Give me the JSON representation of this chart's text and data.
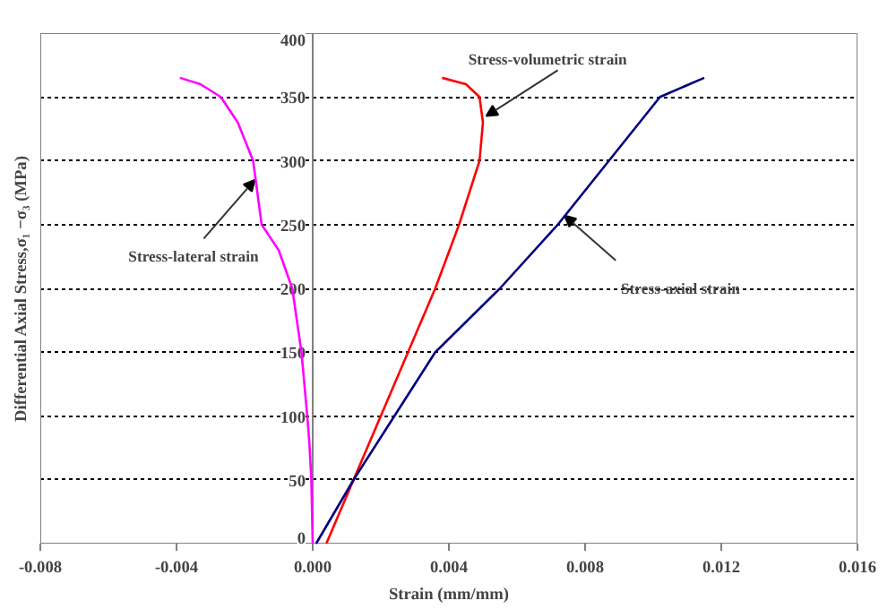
{
  "chart_data": {
    "type": "line",
    "xlabel": "Strain (mm/mm)",
    "ylabel": "Differential Axial Stress,σ₁ −σ₃ (MPa)",
    "xlim": [
      -0.008,
      0.016
    ],
    "ylim": [
      0,
      400
    ],
    "xticks": [
      {
        "value": -0.008,
        "label": "-0.008"
      },
      {
        "value": -0.004,
        "label": "-0.004"
      },
      {
        "value": 0,
        "label": "0.000"
      },
      {
        "value": 0.004,
        "label": "0.004"
      },
      {
        "value": 0.008,
        "label": "0.008"
      },
      {
        "value": 0.012,
        "label": "0.012"
      },
      {
        "value": 0.016,
        "label": "0.016"
      }
    ],
    "yticks": [
      0,
      50,
      100,
      150,
      200,
      250,
      300,
      350,
      400
    ],
    "grid": "y",
    "series": [
      {
        "color": "#ff00ff",
        "x": [
          0,
          -4e-05,
          -0.0001,
          -0.00016,
          -0.00033,
          -0.0006,
          -0.001,
          -0.0015,
          -0.00175,
          -0.0022,
          -0.0027,
          -0.0033,
          -0.0039
        ],
        "values": [
          0,
          50,
          80,
          100,
          150,
          200,
          230,
          250,
          300,
          330,
          350,
          360,
          365
        ]
      },
      {
        "color": "#ff0000",
        "x": [
          0.0004,
          0.0012,
          0.002,
          0.0028,
          0.0036,
          0.0043,
          0.0049,
          0.005,
          0.0049,
          0.0045,
          0.0038
        ],
        "values": [
          0,
          50,
          100,
          150,
          200,
          250,
          300,
          330,
          350,
          360,
          365
        ]
      },
      {
        "color": "#000080",
        "x": [
          0.0001,
          0.0012,
          0.0024,
          0.0036,
          0.0055,
          0.0072,
          0.0087,
          0.0102,
          0.0115
        ],
        "values": [
          0,
          50,
          100,
          150,
          200,
          250,
          300,
          350,
          365
        ]
      }
    ],
    "annotations": [
      {
        "text": "Stress-lateral strain",
        "x": -0.0017,
        "y": 285
      },
      {
        "text": "Stress-volumetric strain",
        "x": 0.0051,
        "y": 335
      },
      {
        "text": "Stress-axial strain",
        "x": 0.0074,
        "y": 257
      }
    ]
  }
}
